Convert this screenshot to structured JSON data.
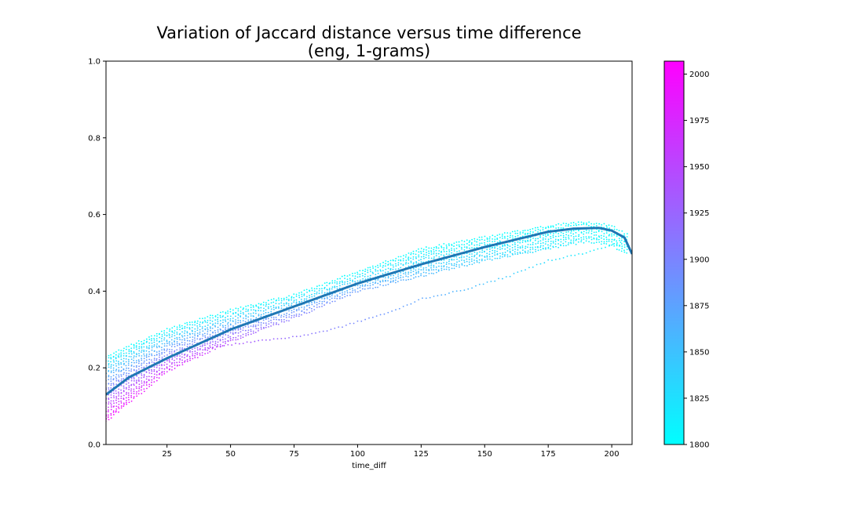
{
  "chart_data": {
    "type": "scatter",
    "title": "Variation of Jaccard distance versus time difference",
    "subtitle": "(eng, 1-grams)",
    "xlabel": "time_diff",
    "ylabel": "",
    "xlim": [
      1,
      208
    ],
    "ylim": [
      0.0,
      1.0
    ],
    "x_ticks": [
      "25",
      "50",
      "75",
      "100",
      "125",
      "150",
      "175",
      "200"
    ],
    "x_tick_values": [
      25,
      50,
      75,
      100,
      125,
      150,
      175,
      200
    ],
    "y_ticks": [
      "0.0",
      "0.2",
      "0.4",
      "0.6",
      "0.8",
      "1.0"
    ],
    "y_tick_values": [
      0.0,
      0.2,
      0.4,
      0.6,
      0.8,
      1.0
    ],
    "grid": false,
    "color_encoding": "year",
    "colorbar": {
      "ticks": [
        "1800",
        "1825",
        "1850",
        "1875",
        "1900",
        "1925",
        "1950",
        "1975",
        "2000"
      ],
      "tick_values": [
        1800,
        1825,
        1850,
        1875,
        1900,
        1925,
        1950,
        1975,
        2000
      ],
      "range": [
        1800,
        2007
      ],
      "colormap": "cool",
      "color_low": "#00ffff",
      "color_high": "#ff00ff"
    },
    "band": {
      "description": "dense scatter of distance per time_diff, colored by year",
      "x": [
        1,
        25,
        50,
        75,
        100,
        125,
        150,
        175,
        190,
        200,
        205
      ],
      "low": [
        0.06,
        0.19,
        0.27,
        0.33,
        0.4,
        0.44,
        0.48,
        0.51,
        0.53,
        0.52,
        0.5
      ],
      "high": [
        0.23,
        0.3,
        0.35,
        0.39,
        0.45,
        0.51,
        0.54,
        0.57,
        0.58,
        0.57,
        0.55
      ]
    },
    "outlier_series": {
      "x": [
        40,
        60,
        75,
        90,
        100,
        115,
        125,
        140,
        150,
        160,
        175,
        190,
        205
      ],
      "y": [
        0.25,
        0.27,
        0.28,
        0.3,
        0.32,
        0.35,
        0.38,
        0.4,
        0.42,
        0.44,
        0.48,
        0.5,
        0.53
      ]
    },
    "trend_line": {
      "color": "#1f77b4",
      "x": [
        1,
        10,
        25,
        50,
        75,
        100,
        125,
        150,
        175,
        185,
        195,
        200,
        205,
        208
      ],
      "y": [
        0.13,
        0.175,
        0.225,
        0.3,
        0.36,
        0.42,
        0.47,
        0.515,
        0.555,
        0.563,
        0.565,
        0.558,
        0.54,
        0.497
      ]
    }
  }
}
